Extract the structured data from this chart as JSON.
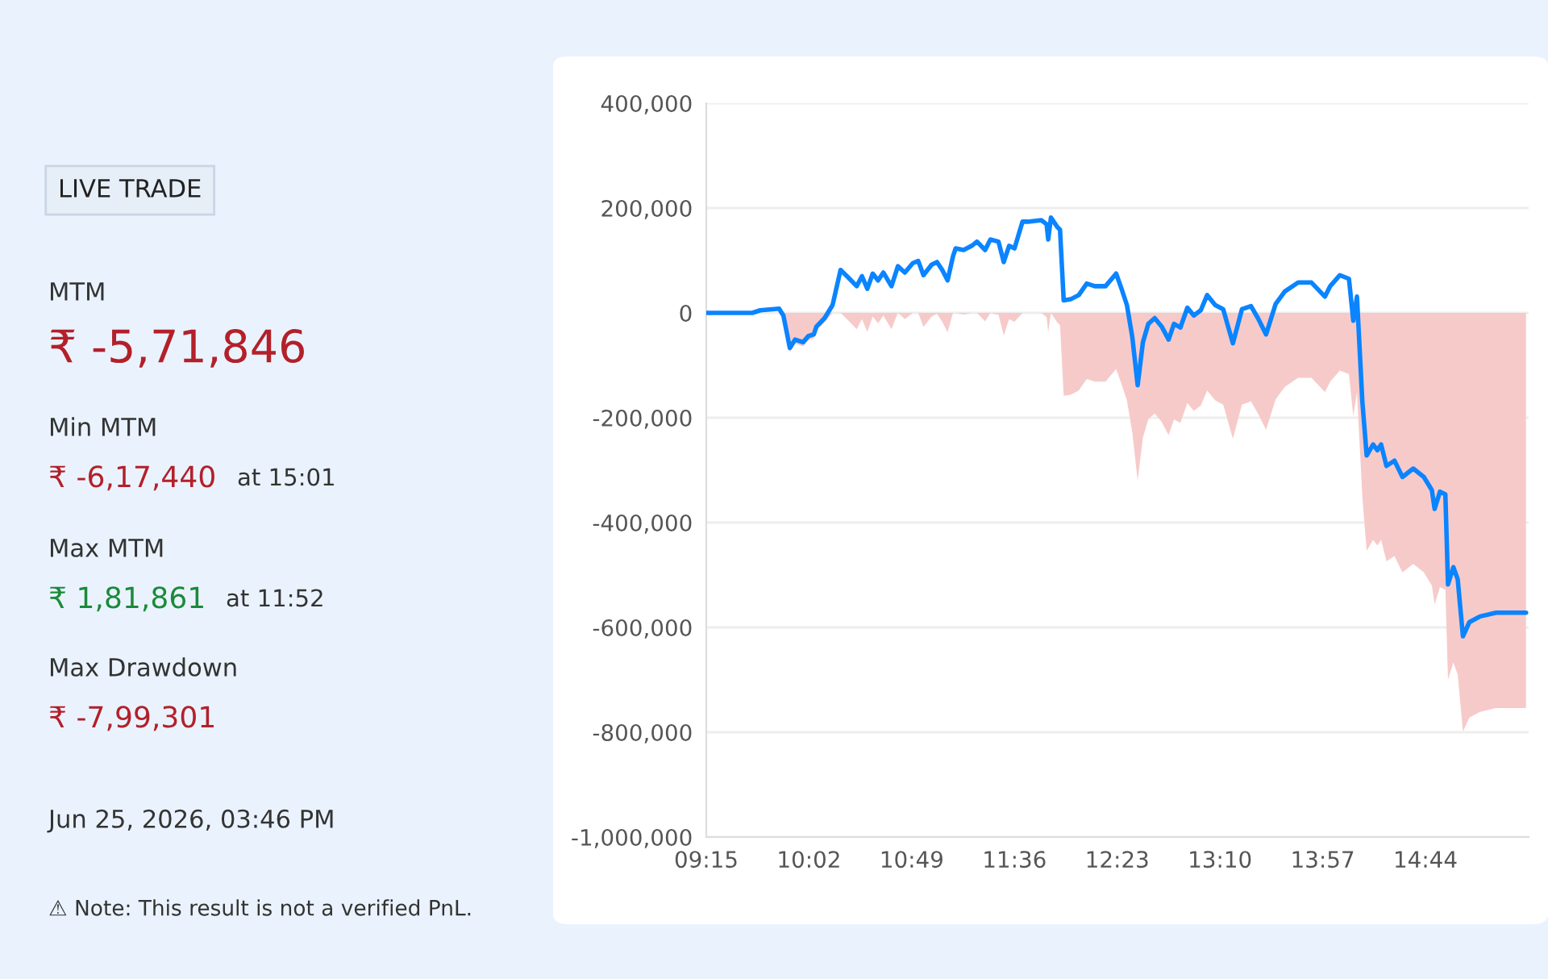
{
  "chart_data": [
    {
      "type": "other",
      "annotations": [
        "LIVE TRADE",
        "MTM",
        "₹ -5,71,846",
        "Min MTM",
        "₹ -6,17,440",
        "at 15:01",
        "Max MTM",
        "₹ 1,81,861",
        "at 11:52",
        "Max Drawdown",
        "₹ -7,99,301",
        "Jun 25, 2026, 03:46 PM",
        "⚠ Note: This result is not a verified PnL."
      ],
      "colors": [
        "#222222",
        "#333333",
        "#b3202a",
        "#333333",
        "#b3202a",
        "#333333",
        "#333333",
        "#1a8a3a",
        "#333333",
        "#333333",
        "#b3202a",
        "#333333",
        "#333333"
      ]
    },
    {
      "type": "line",
      "x": [
        9.25,
        9.601,
        9.662,
        9.805,
        9.838,
        9.887,
        9.927,
        9.988,
        10.029,
        10.07,
        10.09,
        10.152,
        10.213,
        10.274,
        10.335,
        10.397,
        10.437,
        10.478,
        10.519,
        10.56,
        10.6,
        10.662,
        10.711,
        10.764,
        10.825,
        10.866,
        10.906,
        10.968,
        11.009,
        11.049,
        11.09,
        11.131,
        11.151,
        11.212,
        11.274,
        11.314,
        11.376,
        11.416,
        11.478,
        11.518,
        11.559,
        11.6,
        11.661,
        11.702,
        11.804,
        11.845,
        11.857,
        11.878,
        11.926,
        11.947,
        11.975,
        12.028,
        12.09,
        12.151,
        12.212,
        12.294,
        12.375,
        12.416,
        12.457,
        12.498,
        12.539,
        12.579,
        12.62,
        12.669,
        12.722,
        12.775,
        12.816,
        12.865,
        12.918,
        12.967,
        13.02,
        13.069,
        13.13,
        13.191,
        13.265,
        13.334,
        13.403,
        13.456,
        13.518,
        13.591,
        13.661,
        13.763,
        13.864,
        13.967,
        14.007,
        14.081,
        14.15,
        14.183,
        14.211,
        14.252,
        14.285,
        14.334,
        14.367,
        14.395,
        14.436,
        14.497,
        14.558,
        14.64,
        14.721,
        14.782,
        14.803,
        14.844,
        14.885,
        14.905,
        14.946,
        14.979,
        15.019,
        15.068,
        15.15,
        15.272,
        15.5
      ],
      "series": [
        {
          "type": "area",
          "color": "#f7caca",
          "values": [
            0,
            0,
            0,
            0,
            -13000,
            -75000,
            -59000,
            -64000,
            -52000,
            -49000,
            -34000,
            -18000,
            0,
            0,
            -15000,
            -31000,
            -12000,
            -36000,
            -7000,
            -20000,
            -5000,
            -31000,
            0,
            -12000,
            0,
            0,
            -27000,
            -7000,
            -2000,
            -17000,
            -37000,
            0,
            0,
            -3000,
            0,
            0,
            -16000,
            0,
            -4000,
            -43000,
            -12000,
            -17000,
            0,
            0,
            0,
            -8000,
            -37000,
            0,
            -18000,
            -23000,
            -158000,
            -156000,
            -148000,
            -126000,
            -131000,
            -131000,
            -107000,
            -136000,
            -167000,
            -228000,
            -320000,
            -238000,
            -203000,
            -192000,
            -208000,
            -233000,
            -203000,
            -210000,
            -172000,
            -187000,
            -177000,
            -148000,
            -167000,
            -175000,
            -240000,
            -175000,
            -169000,
            -192000,
            -223000,
            -165000,
            -141000,
            -124000,
            -124000,
            -151000,
            -131000,
            -110000,
            -117000,
            -197000,
            -151000,
            -351000,
            -454000,
            -433000,
            -444000,
            -433000,
            -474000,
            -464000,
            -495000,
            -479000,
            -495000,
            -520000,
            -556000,
            -523000,
            -528000,
            -700000,
            -667000,
            -690000,
            -799000,
            -772000,
            -761000,
            -754000,
            -754000
          ]
        },
        {
          "type": "line",
          "color": "#0a84ff",
          "values": [
            0,
            0,
            5000,
            8000,
            -5000,
            -67000,
            -51000,
            -56000,
            -44000,
            -41000,
            -26000,
            -10000,
            15000,
            82000,
            67000,
            51000,
            70000,
            46000,
            75000,
            62000,
            77000,
            51000,
            89000,
            77000,
            95000,
            99000,
            72000,
            92000,
            97000,
            82000,
            62000,
            108000,
            123000,
            120000,
            128000,
            136000,
            120000,
            140000,
            136000,
            97000,
            128000,
            123000,
            174000,
            174000,
            177000,
            169000,
            140000,
            182000,
            164000,
            159000,
            24000,
            26000,
            34000,
            56000,
            51000,
            51000,
            75000,
            46000,
            15000,
            -46000,
            -138000,
            -56000,
            -21000,
            -10000,
            -26000,
            -51000,
            -21000,
            -28000,
            10000,
            -5000,
            5000,
            34000,
            15000,
            7000,
            -58000,
            7000,
            13000,
            -10000,
            -41000,
            17000,
            41000,
            58000,
            58000,
            31000,
            51000,
            72000,
            65000,
            -15000,
            31000,
            -169000,
            -272000,
            -251000,
            -262000,
            -251000,
            -292000,
            -282000,
            -313000,
            -297000,
            -313000,
            -338000,
            -374000,
            -341000,
            -346000,
            -518000,
            -485000,
            -508000,
            -617000,
            -590000,
            -579000,
            -572000,
            -572000
          ]
        }
      ],
      "xlim": [
        9.25,
        15.52
      ],
      "xticks": [
        {
          "value": 9.25,
          "label": "09:15"
        },
        {
          "value": 10.0333,
          "label": "10:02"
        },
        {
          "value": 10.8167,
          "label": "10:49"
        },
        {
          "value": 11.6,
          "label": "11:36"
        },
        {
          "value": 12.3833,
          "label": "12:23"
        },
        {
          "value": 13.1667,
          "label": "13:10"
        },
        {
          "value": 13.95,
          "label": "13:57"
        },
        {
          "value": 14.7333,
          "label": "14:44"
        }
      ],
      "ylim": [
        -1000000,
        400000
      ],
      "yticks": [
        {
          "value": -1000000,
          "label": "-1,000,000"
        },
        {
          "value": -800000,
          "label": "-800,000"
        },
        {
          "value": -600000,
          "label": "-600,000"
        },
        {
          "value": -400000,
          "label": "-400,000"
        },
        {
          "value": -200000,
          "label": "-200,000"
        },
        {
          "value": 0,
          "label": "0"
        },
        {
          "value": 200000,
          "label": "200,000"
        },
        {
          "value": 400000,
          "label": "400,000"
        }
      ],
      "grid": "y",
      "marker": "none",
      "line_style": "solid"
    }
  ]
}
